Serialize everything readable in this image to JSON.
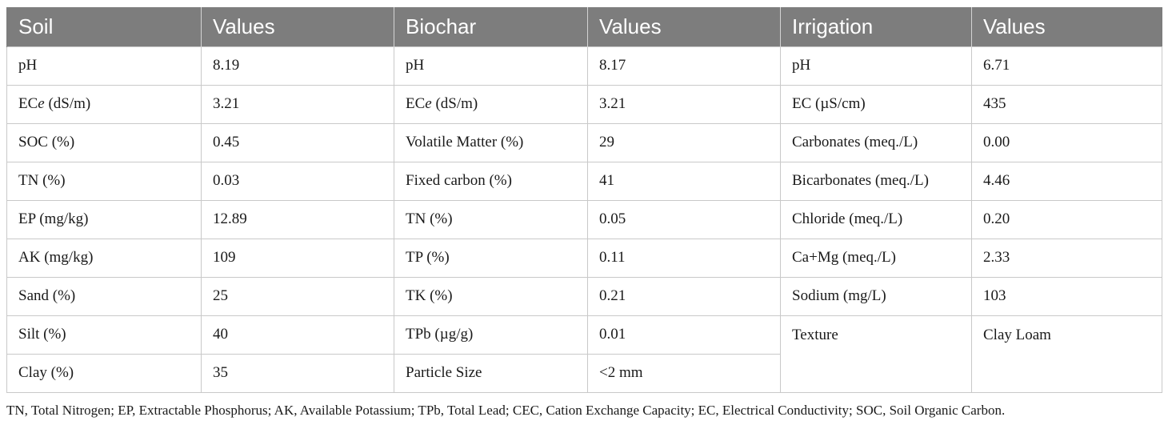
{
  "headers": [
    "Soil",
    "Values",
    "Biochar",
    "Values",
    "Irrigation",
    "Values"
  ],
  "rows": [
    {
      "soil": "pH",
      "soil_val": "8.19",
      "biochar": "pH",
      "biochar_val": "8.17",
      "irr": "pH",
      "irr_val": "6.71"
    },
    {
      "soil": "ECe (dS/m)",
      "soil_val": "3.21",
      "biochar": "ECe (dS/m)",
      "biochar_val": "3.21",
      "irr": "EC (µS/cm)",
      "irr_val": "435"
    },
    {
      "soil": "SOC (%)",
      "soil_val": "0.45",
      "biochar": "Volatile Matter (%)",
      "biochar_val": "29",
      "irr": "Carbonates (meq./L)",
      "irr_val": "0.00"
    },
    {
      "soil": "TN (%)",
      "soil_val": "0.03",
      "biochar": "Fixed carbon (%)",
      "biochar_val": "41",
      "irr": "Bicarbonates (meq./L)",
      "irr_val": "4.46"
    },
    {
      "soil": "EP (mg/kg)",
      "soil_val": "12.89",
      "biochar": "TN (%)",
      "biochar_val": "0.05",
      "irr": "Chloride (meq./L)",
      "irr_val": "0.20"
    },
    {
      "soil": "AK (mg/kg)",
      "soil_val": "109",
      "biochar": "TP (%)",
      "biochar_val": "0.11",
      "irr": "Ca+Mg (meq./L)",
      "irr_val": "2.33"
    },
    {
      "soil": "Sand (%)",
      "soil_val": "25",
      "biochar": "TK (%)",
      "biochar_val": "0.21",
      "irr": "Sodium (mg/L)",
      "irr_val": "103"
    },
    {
      "soil": "Silt (%)",
      "soil_val": "40",
      "biochar": "TPb (µg/g)",
      "biochar_val": "0.01",
      "irr": "Texture",
      "irr_val": "Clay Loam"
    },
    {
      "soil": "Clay (%)",
      "soil_val": "35",
      "biochar": "Particle Size",
      "biochar_val": "<2 mm"
    }
  ],
  "footnote": "TN, Total Nitrogen; EP, Extractable Phosphorus; AK, Available Potassium; TPb, Total Lead; CEC, Cation Exchange Capacity; EC, Electrical Conductivity; SOC, Soil Organic Carbon."
}
